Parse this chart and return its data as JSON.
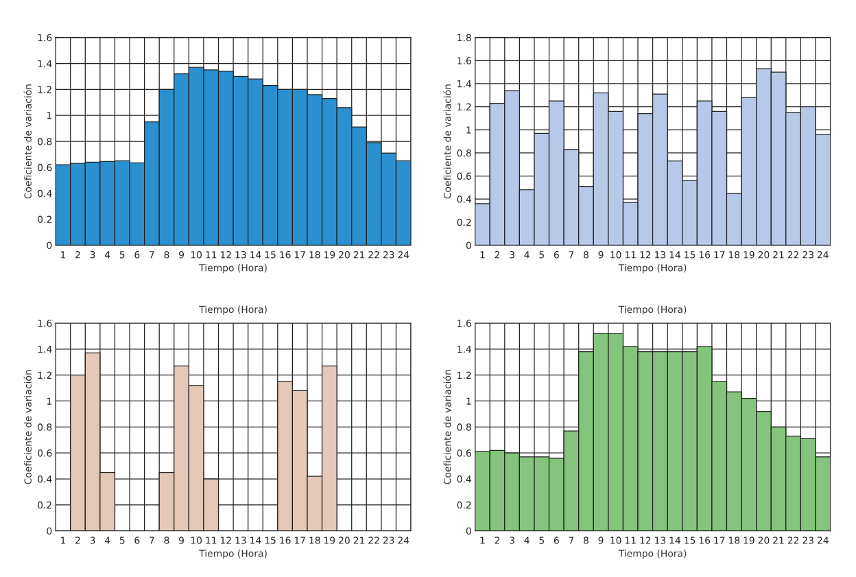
{
  "chart_data": [
    {
      "type": "bar",
      "xlabel": "Tiempo (Hora)",
      "ylabel": "Coeficiente de variación",
      "categories": [
        "1",
        "2",
        "3",
        "4",
        "5",
        "6",
        "7",
        "8",
        "9",
        "10",
        "11",
        "12",
        "13",
        "14",
        "15",
        "16",
        "17",
        "18",
        "19",
        "20",
        "21",
        "22",
        "23",
        "24"
      ],
      "values": [
        0.62,
        0.63,
        0.64,
        0.645,
        0.65,
        0.635,
        0.95,
        1.2,
        1.32,
        1.37,
        1.35,
        1.34,
        1.3,
        1.28,
        1.23,
        1.2,
        1.2,
        1.16,
        1.13,
        1.06,
        0.91,
        0.79,
        0.71,
        0.65
      ],
      "color": "#2a90d0",
      "ylim": [
        0,
        1.6
      ],
      "yticks": [
        0,
        0.2,
        0.4,
        0.6,
        0.8,
        1,
        1.2,
        1.4,
        1.6
      ],
      "grid": true
    },
    {
      "type": "bar",
      "xlabel": "Tiempo (Hora)",
      "ylabel": "Coeficiente de variación",
      "categories": [
        "1",
        "2",
        "3",
        "4",
        "5",
        "6",
        "7",
        "8",
        "9",
        "10",
        "11",
        "12",
        "13",
        "14",
        "15",
        "16",
        "17",
        "18",
        "19",
        "20",
        "21",
        "22",
        "23",
        "24"
      ],
      "values": [
        0.36,
        1.23,
        1.34,
        0.48,
        0.97,
        1.25,
        0.83,
        0.51,
        1.32,
        1.16,
        0.37,
        1.14,
        1.31,
        0.73,
        0.56,
        1.25,
        1.16,
        0.45,
        1.28,
        1.53,
        1.5,
        1.15,
        1.2,
        0.96
      ],
      "color": "#b8c8e8",
      "ylim": [
        0,
        1.8
      ],
      "yticks": [
        0,
        0.2,
        0.4,
        0.6,
        0.8,
        1,
        1.2,
        1.4,
        1.6,
        1.8
      ],
      "grid": true
    },
    {
      "type": "bar",
      "subtitle": "Tiempo (Hora)",
      "xlabel": "Tiempo (Hora)",
      "ylabel": "Coeficiente de variación",
      "categories": [
        "1",
        "2",
        "3",
        "4",
        "5",
        "6",
        "7",
        "8",
        "9",
        "10",
        "11",
        "12",
        "13",
        "14",
        "15",
        "16",
        "17",
        "18",
        "19",
        "20",
        "21",
        "22",
        "23",
        "24"
      ],
      "values": [
        null,
        1.2,
        1.37,
        0.45,
        null,
        null,
        null,
        0.45,
        1.27,
        1.12,
        0.4,
        null,
        null,
        null,
        null,
        1.15,
        1.08,
        0.42,
        1.27,
        null,
        null,
        null,
        null,
        null
      ],
      "color": "#e4c8b8",
      "ylim": [
        0,
        1.6
      ],
      "yticks": [
        0,
        0.2,
        0.4,
        0.6,
        0.8,
        1,
        1.2,
        1.4,
        1.6
      ],
      "grid": true
    },
    {
      "type": "bar",
      "subtitle": "Tiempo (Hora)",
      "xlabel": "Tiempo (Hora)",
      "ylabel": "Coeficiente de variación",
      "categories": [
        "1",
        "2",
        "3",
        "4",
        "5",
        "6",
        "7",
        "8",
        "9",
        "10",
        "11",
        "12",
        "13",
        "14",
        "15",
        "16",
        "17",
        "18",
        "19",
        "20",
        "21",
        "22",
        "23",
        "24"
      ],
      "values": [
        0.61,
        0.62,
        0.6,
        0.57,
        0.57,
        0.56,
        0.77,
        1.38,
        1.52,
        1.52,
        1.42,
        1.38,
        1.38,
        1.38,
        1.38,
        1.42,
        1.15,
        1.07,
        1.02,
        0.92,
        0.8,
        0.73,
        0.71,
        0.57
      ],
      "color": "#84c47c",
      "ylim": [
        0,
        1.6
      ],
      "yticks": [
        0,
        0.2,
        0.4,
        0.6,
        0.8,
        1,
        1.2,
        1.4,
        1.6
      ],
      "grid": true
    }
  ]
}
